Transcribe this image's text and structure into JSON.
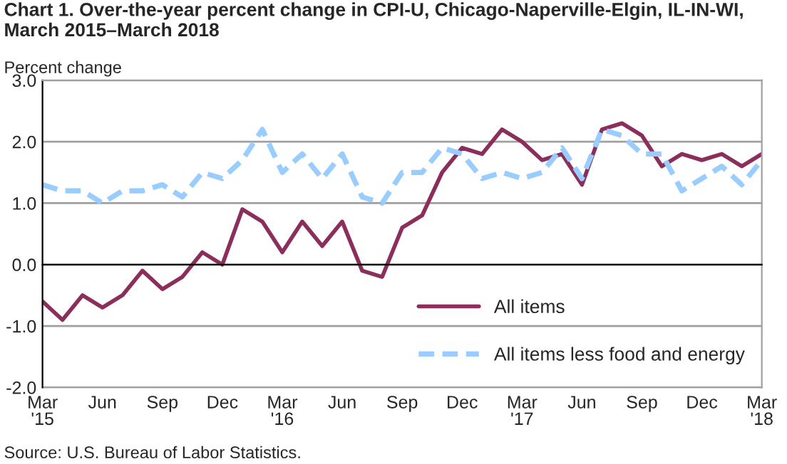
{
  "chart_data": {
    "type": "line",
    "title": "Chart 1. Over-the-year percent change in CPI-U, Chicago-Naperville-Elgin, IL-IN-WI, March 2015–March 2018",
    "ylabel": "Percent change",
    "categories": [
      "Mar\n'15",
      null,
      null,
      "Jun",
      null,
      null,
      "Sep",
      null,
      null,
      "Dec",
      null,
      null,
      "Mar\n'16",
      null,
      null,
      "Jun",
      null,
      null,
      "Sep",
      null,
      null,
      "Dec",
      null,
      null,
      "Mar\n'17",
      null,
      null,
      "Jun",
      null,
      null,
      "Sep",
      null,
      null,
      "Dec",
      null,
      null,
      "Mar\n'18"
    ],
    "series": [
      {
        "name": "All items",
        "color": "#8b2e5c",
        "line_style": "solid",
        "values": [
          -0.6,
          -0.9,
          -0.5,
          -0.7,
          -0.5,
          -0.1,
          -0.4,
          -0.2,
          0.2,
          0.0,
          0.9,
          0.7,
          0.2,
          0.7,
          0.3,
          0.7,
          -0.1,
          -0.2,
          0.6,
          0.8,
          1.5,
          1.9,
          1.8,
          2.2,
          2.0,
          1.7,
          1.8,
          1.3,
          2.2,
          2.3,
          2.1,
          1.6,
          1.8,
          1.7,
          1.8,
          1.6,
          1.8
        ]
      },
      {
        "name": "All items less food and energy",
        "color": "#99ccff",
        "line_style": "dashed",
        "values": [
          1.3,
          1.2,
          1.2,
          1.0,
          1.2,
          1.2,
          1.3,
          1.1,
          1.5,
          1.4,
          1.7,
          2.2,
          1.5,
          1.8,
          1.4,
          1.8,
          1.1,
          1.0,
          1.5,
          1.5,
          1.9,
          1.8,
          1.4,
          1.5,
          1.4,
          1.5,
          1.9,
          1.4,
          2.2,
          2.1,
          1.8,
          1.8,
          1.2,
          1.4,
          1.6,
          1.3,
          1.7
        ]
      }
    ],
    "ylim": [
      -2.0,
      3.0
    ],
    "yticks": [
      {
        "value": -2.0,
        "label": "-2.0"
      },
      {
        "value": -1.0,
        "label": "-1.0"
      },
      {
        "value": 0.0,
        "label": "0.0"
      },
      {
        "value": 1.0,
        "label": "1.0"
      },
      {
        "value": 2.0,
        "label": "2.0"
      },
      {
        "value": 3.0,
        "label": "3.0"
      }
    ],
    "grid": "y",
    "legend": "bottom right",
    "marker": "none",
    "annotations": [
      "Source: U.S. Bureau of Labor Statistics."
    ]
  }
}
